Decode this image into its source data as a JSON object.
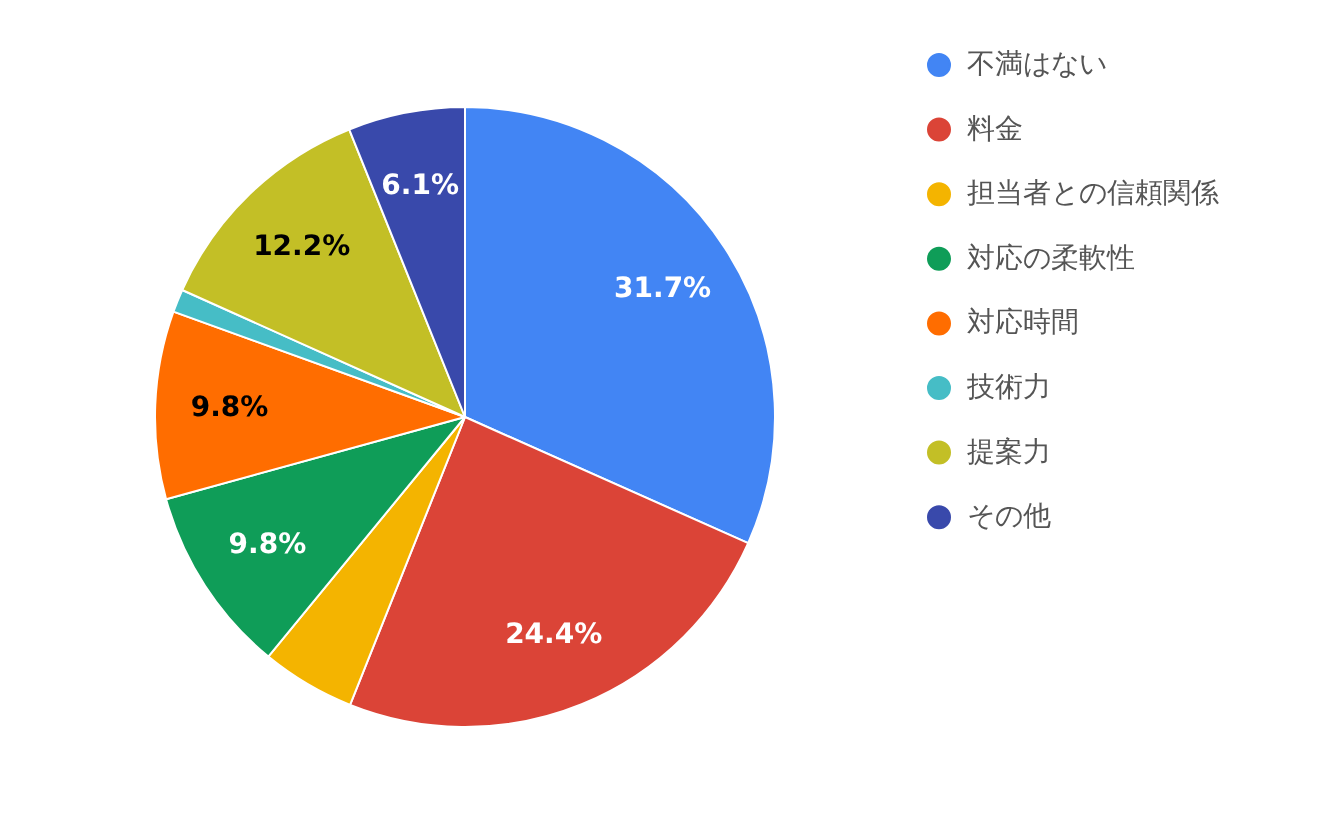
{
  "chart_data": {
    "type": "pie",
    "categories": [
      "不満はない",
      "料金",
      "担当者との信頼関係",
      "対応の柔軟性",
      "対応時間",
      "技術力",
      "提案力",
      "その他"
    ],
    "values": [
      31.7,
      24.4,
      4.9,
      9.8,
      9.8,
      1.2,
      12.2,
      6.1
    ],
    "colors": [
      "#4285f4",
      "#db4437",
      "#f4b400",
      "#0f9d58",
      "#ff6d00",
      "#46bdc6",
      "#c3bf26",
      "#3949ab"
    ],
    "value_labels": [
      "31.7%",
      "24.4%",
      null,
      "9.8%",
      "9.8%",
      null,
      "12.2%",
      "6.1%"
    ],
    "legend": "right"
  }
}
